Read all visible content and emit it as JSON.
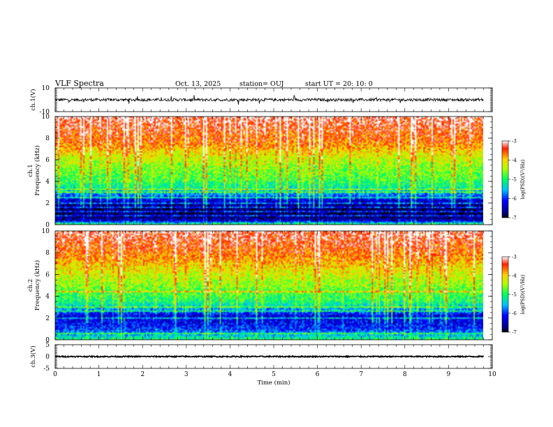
{
  "header": {
    "title": "VLF Spectra",
    "date": "Oct. 13, 2025",
    "station": "station= OUJ",
    "start": "start  UT =   20: 10: 0"
  },
  "chart_data": [
    {
      "type": "line",
      "panel": "ch1-waveform",
      "ylabel": "ch.1(V)",
      "ylim": [
        -10,
        10
      ],
      "ytick_labels": [
        "10",
        "-10"
      ],
      "xlim": [
        0,
        10
      ],
      "data_extent_min": 9.8,
      "baseline": 0,
      "noise_amplitude": 1.2,
      "color": "#000000"
    },
    {
      "type": "heatmap",
      "panel": "ch1-spectrogram",
      "ylabel_line1": "ch.1",
      "ylabel_line2": "Frequency (kHz)",
      "ylim": [
        0,
        10
      ],
      "ytick_labels": [
        "0",
        "2",
        "4",
        "6",
        "8",
        "10"
      ],
      "xlim": [
        0,
        10
      ],
      "data_extent_min": 9.8,
      "colorbar": {
        "label": "log(PSD)(V²/Hz)",
        "range": [
          -7,
          -3
        ],
        "tick_labels": [
          "-3",
          "-4",
          "-5",
          "-6",
          "-7"
        ]
      },
      "profile": {
        "freq_khz": [
          0,
          0.4,
          0.8,
          1.5,
          2.2,
          2.8,
          3.4,
          4.2,
          5.2,
          6.2,
          7.5,
          10
        ],
        "log_psd": [
          -4.8,
          -6.5,
          -6.8,
          -6.8,
          -6.4,
          -5.7,
          -5.2,
          -4.8,
          -4.6,
          -4.3,
          -3.7,
          -3.2
        ]
      },
      "hum_lines_khz": [
        0.4,
        0.8,
        1.2,
        1.6,
        2.0,
        2.5,
        3.0,
        3.3,
        4.0,
        4.6
      ]
    },
    {
      "type": "heatmap",
      "panel": "ch2-spectrogram",
      "ylabel_line1": "ch.2",
      "ylabel_line2": "Frequency (kHz)",
      "ylim": [
        0,
        10
      ],
      "ytick_labels": [
        "0",
        "2",
        "4",
        "6",
        "8",
        "10"
      ],
      "xlim": [
        0,
        10
      ],
      "data_extent_min": 9.8,
      "colorbar": {
        "label": "log(PSD)(V²/Hz)",
        "range": [
          -7,
          -3
        ],
        "tick_labels": [
          "-3",
          "-4",
          "-5",
          "-6",
          "-7"
        ]
      },
      "profile": {
        "freq_khz": [
          0,
          0.5,
          1.0,
          1.6,
          2.2,
          2.8,
          3.5,
          4.5,
          5.5,
          6.5,
          8,
          10
        ],
        "log_psd": [
          -5.0,
          -5.6,
          -6.0,
          -6.2,
          -6.3,
          -5.6,
          -5.0,
          -4.7,
          -4.4,
          -4.1,
          -3.6,
          -3.2
        ]
      },
      "hum_lines_khz": [
        0.6,
        1.0,
        1.4,
        2.0,
        2.6,
        3.0,
        3.6,
        4.4
      ]
    },
    {
      "type": "line",
      "panel": "ch3-waveform",
      "ylabel": "ch.3(V)",
      "ylim": [
        -5,
        5
      ],
      "ytick_labels": [
        "5",
        "0",
        "-5"
      ],
      "xlim": [
        0,
        10
      ],
      "xlabel": "Time (min)",
      "xtick_labels": [
        "0",
        "1",
        "2",
        "3",
        "4",
        "5",
        "6",
        "7",
        "8",
        "9",
        "10"
      ],
      "data_extent_min": 9.8,
      "baseline": 0,
      "noise_amplitude": 0.25,
      "color": "#000000"
    }
  ]
}
